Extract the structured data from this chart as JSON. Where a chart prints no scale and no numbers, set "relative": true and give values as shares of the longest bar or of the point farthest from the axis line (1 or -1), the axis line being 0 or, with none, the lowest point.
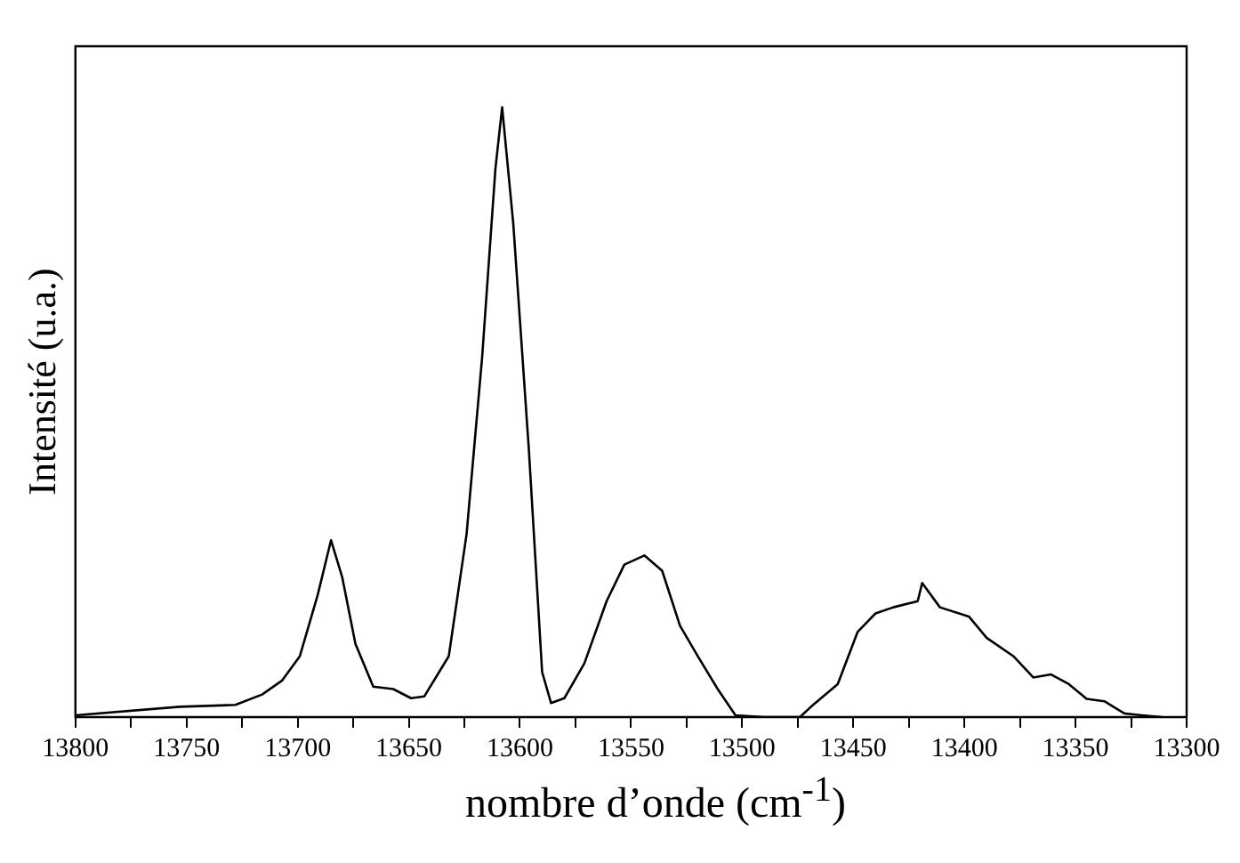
{
  "chart_data": {
    "type": "line",
    "relative": true,
    "xlabel": "nombre d’onde (cm$^{-1}$)",
    "ylabel": "Intensité (u.a.)",
    "xlim": [
      13800,
      13300
    ],
    "xticks": [
      13800,
      {
        "value": 13775,
        "label": null
      },
      13750,
      {
        "value": 13725,
        "label": null
      },
      13700,
      {
        "value": 13675,
        "label": null
      },
      13650,
      {
        "value": 13625,
        "label": null
      },
      13600,
      {
        "value": 13575,
        "label": null
      },
      13550,
      {
        "value": 13525,
        "label": null
      },
      13500,
      {
        "value": 13475,
        "label": null
      },
      13450,
      {
        "value": 13425,
        "label": null
      },
      13400,
      {
        "value": 13375,
        "label": null
      },
      13350,
      {
        "value": 13325,
        "label": null
      },
      13300
    ],
    "grid": false,
    "legend": false,
    "marker": "none",
    "line_style": "solid",
    "series": [
      {
        "color": "#000000",
        "x": [
          13800,
          13753,
          13728,
          13716,
          13707,
          13699,
          13691,
          13685,
          13680,
          13674,
          13666,
          13657,
          13649,
          13643,
          13632,
          13624,
          13617,
          13611,
          13608,
          13603,
          13596,
          13590,
          13586,
          13580,
          13571,
          13561,
          13553,
          13544,
          13536,
          13528,
          13520,
          13511,
          13503,
          13490,
          13474,
          13469,
          13457,
          13448,
          13440,
          13432,
          13421,
          13419,
          13411,
          13398,
          13390,
          13378,
          13369,
          13361,
          13353,
          13345,
          13337,
          13333,
          13328,
          13320,
          13311
        ],
        "values": [
          0.003,
          0.017,
          0.02,
          0.037,
          0.06,
          0.1,
          0.2,
          0.29,
          0.23,
          0.12,
          0.05,
          0.046,
          0.031,
          0.034,
          0.1,
          0.3,
          0.59,
          0.9,
          1,
          0.81,
          0.44,
          0.074,
          0.023,
          0.031,
          0.088,
          0.19,
          0.25,
          0.265,
          0.24,
          0.15,
          0.1,
          0.046,
          0.003,
          0,
          0,
          0.017,
          0.054,
          0.14,
          0.17,
          0.18,
          0.19,
          0.22,
          0.18,
          0.165,
          0.13,
          0.1,
          0.065,
          0.07,
          0.054,
          0.03,
          0.026,
          0.017,
          0.006,
          0.003,
          0
        ]
      }
    ]
  }
}
